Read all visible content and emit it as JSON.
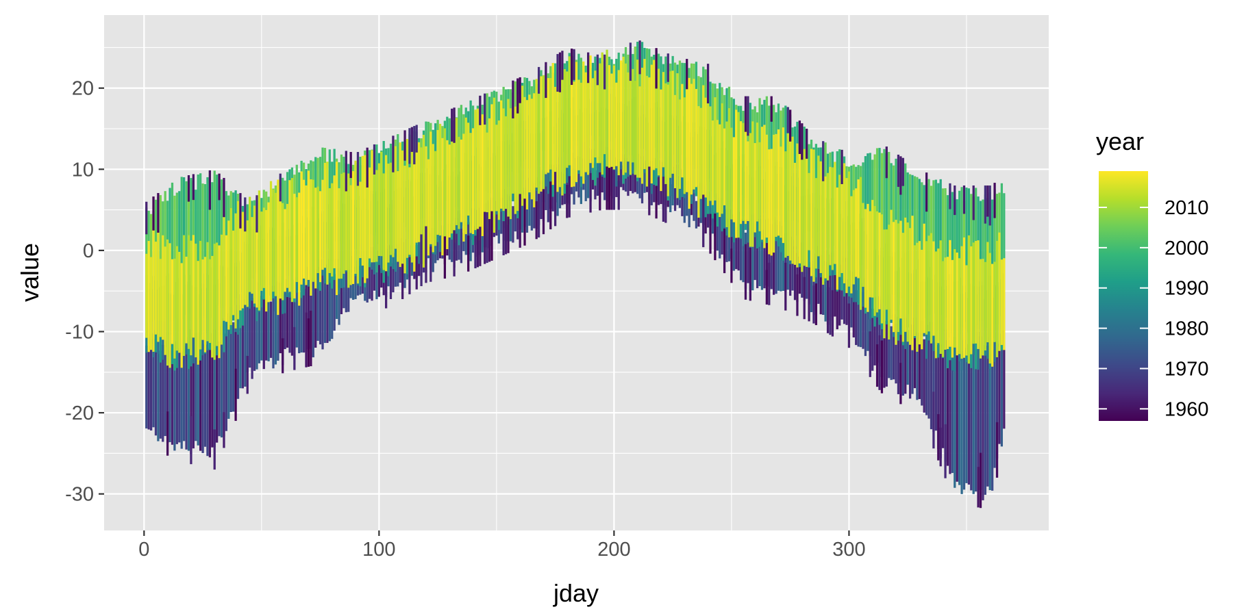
{
  "chart_data": {
    "type": "line",
    "title": "",
    "xlabel": "jday",
    "ylabel": "value",
    "xlim": [
      -17,
      385
    ],
    "ylim": [
      -34.5,
      29
    ],
    "x_ticks": [
      0,
      100,
      200,
      300
    ],
    "x_tick_labels": [
      "0",
      "100",
      "200",
      "300"
    ],
    "y_ticks": [
      -30,
      -20,
      -10,
      0,
      10,
      20
    ],
    "y_tick_labels": [
      "-30",
      "-20",
      "-10",
      "0",
      "10",
      "20"
    ],
    "grid": true,
    "background": "#e5e5e5",
    "legend": {
      "title": "year",
      "placement": "right",
      "range": [
        1957,
        2019
      ],
      "ticks": [
        1960,
        1970,
        1980,
        1990,
        2000,
        2010
      ],
      "tick_labels": [
        "1960",
        "1970",
        "1980",
        "1990",
        "2000",
        "2010"
      ],
      "colormap": [
        "#440154",
        "#482878",
        "#3e4989",
        "#31688e",
        "#26828e",
        "#1f9e89",
        "#35b779",
        "#6ece58",
        "#b5de2b",
        "#fde725"
      ]
    },
    "series": [
      {
        "color_by": "year",
        "x": [
          1,
          15,
          30,
          45,
          60,
          75,
          90,
          105,
          120,
          135,
          150,
          165,
          180,
          195,
          210,
          225,
          240,
          255,
          270,
          285,
          300,
          315,
          330,
          345,
          360,
          366
        ],
        "low": [
          -23,
          -25,
          -26,
          -16,
          -14,
          -13,
          -7,
          -6,
          -3,
          -2,
          0,
          2,
          5,
          6,
          6,
          4,
          1,
          -5,
          -6,
          -8,
          -11,
          -17,
          -19,
          -30,
          -31,
          -23
        ],
        "mid": [
          -5,
          -6,
          -5,
          0,
          1,
          3,
          4,
          5,
          7,
          9,
          11,
          14,
          16,
          17,
          16,
          15,
          12,
          9,
          8,
          5,
          3,
          -2,
          -4,
          -6,
          -6,
          -5
        ],
        "high": [
          6,
          9,
          10,
          6,
          10,
          13,
          12,
          14,
          16,
          18,
          20,
          22,
          25,
          24,
          26,
          24,
          23,
          19,
          19,
          14,
          12,
          13,
          10,
          8,
          8,
          9
        ]
      }
    ]
  }
}
